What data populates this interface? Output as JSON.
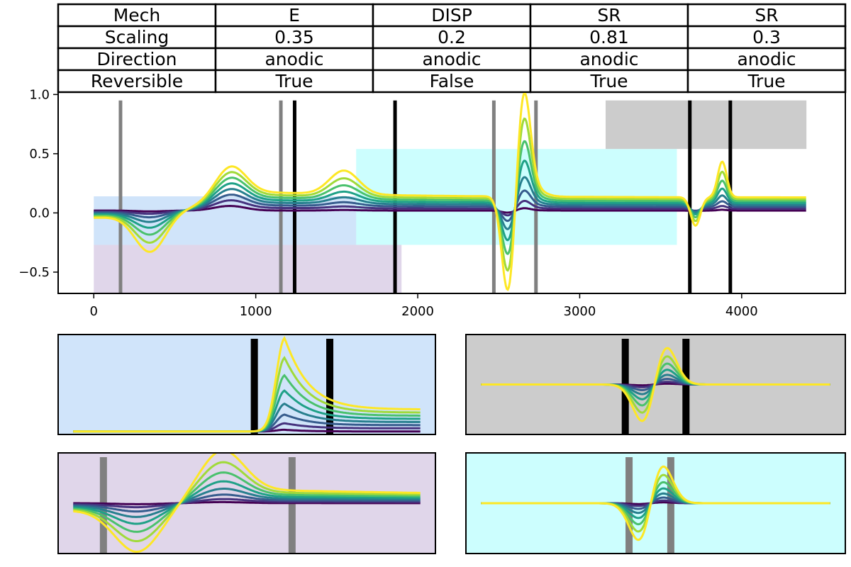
{
  "table": {
    "columns": [
      "Mech",
      "E",
      "DISP",
      "SR",
      "SR"
    ],
    "rows": [
      [
        "Scaling",
        "0.35",
        "0.2",
        "0.81",
        "0.3"
      ],
      [
        "Direction",
        "anodic",
        "anodic",
        "anodic",
        "anodic"
      ],
      [
        "Reversible",
        "True",
        "False",
        "True",
        "True"
      ]
    ]
  },
  "chart_data": {
    "type": "line",
    "title": "",
    "xlabel": "",
    "ylabel": "",
    "xlim": [
      -220,
      4640
    ],
    "ylim": [
      -0.68,
      1.02
    ],
    "x_ticks": [
      "0",
      "1000",
      "2000",
      "3000",
      "4000"
    ],
    "y_ticks": [
      "1.0",
      "0.5",
      "0.0",
      "−0.5"
    ],
    "grid": false,
    "legend": "none",
    "n_series": 8,
    "series_colors": [
      "#440154",
      "#46327e",
      "#365c8d",
      "#277f8e",
      "#1fa187",
      "#4ac16d",
      "#a0da39",
      "#fde725"
    ],
    "shaded_regions": [
      {
        "x": [
          0,
          2550
        ],
        "y": [
          -0.27,
          0.14
        ],
        "color": "#d0e4fa"
      },
      {
        "x": [
          0,
          1900
        ],
        "y": [
          -0.68,
          -0.27
        ],
        "color": "#e0d6ea"
      },
      {
        "x": [
          1620,
          3600
        ],
        "y": [
          -0.27,
          0.54
        ],
        "color": "#ccfefe"
      },
      {
        "x": [
          3160,
          4400
        ],
        "y": [
          0.54,
          0.95
        ],
        "color": "#cccccc"
      }
    ],
    "vertical_lines": [
      {
        "x": 165,
        "color": "#808080"
      },
      {
        "x": 1155,
        "color": "#808080"
      },
      {
        "x": 1240,
        "color": "#000000"
      },
      {
        "x": 1860,
        "color": "#000000"
      },
      {
        "x": 2470,
        "color": "#808080"
      },
      {
        "x": 2730,
        "color": "#808080"
      },
      {
        "x": 3680,
        "color": "#000000"
      },
      {
        "x": 3930,
        "color": "#000000"
      }
    ],
    "main_peaks": [
      {
        "x0": 800,
        "amp": 0.26,
        "w": 90,
        "kind": "redox",
        "tail": 0.06
      },
      {
        "x0": 1545,
        "amp": 0.2,
        "w": 90,
        "kind": "pos",
        "tail": 0.02
      },
      {
        "x0": 2600,
        "amp": 0.78,
        "w": 45,
        "kind": "redox",
        "tail": 0.0
      },
      {
        "x0": 3825,
        "amp": 0.3,
        "w": 40,
        "kind": "redox",
        "tail": 0.0
      }
    ],
    "insets": [
      {
        "panel": "top-left",
        "background": "#d0e4fa",
        "vlines": [
          0.52,
          0.72
        ],
        "vline_color": "#000000",
        "shape": "step-peak",
        "peak_x": 0.6
      },
      {
        "panel": "top-right",
        "background": "#cccccc",
        "vlines": [
          0.42,
          0.58
        ],
        "vline_color": "#000000",
        "shape": "redox",
        "peak_x": 0.5
      },
      {
        "panel": "bottom-left",
        "background": "#e0d6ea",
        "vlines": [
          0.12,
          0.62
        ],
        "vline_color": "#808080",
        "shape": "wide-redox",
        "peak_x": 0.43
      },
      {
        "panel": "bottom-right",
        "background": "#ccfefe",
        "vlines": [
          0.43,
          0.54
        ],
        "vline_color": "#808080",
        "shape": "redox",
        "peak_x": 0.49
      }
    ]
  }
}
